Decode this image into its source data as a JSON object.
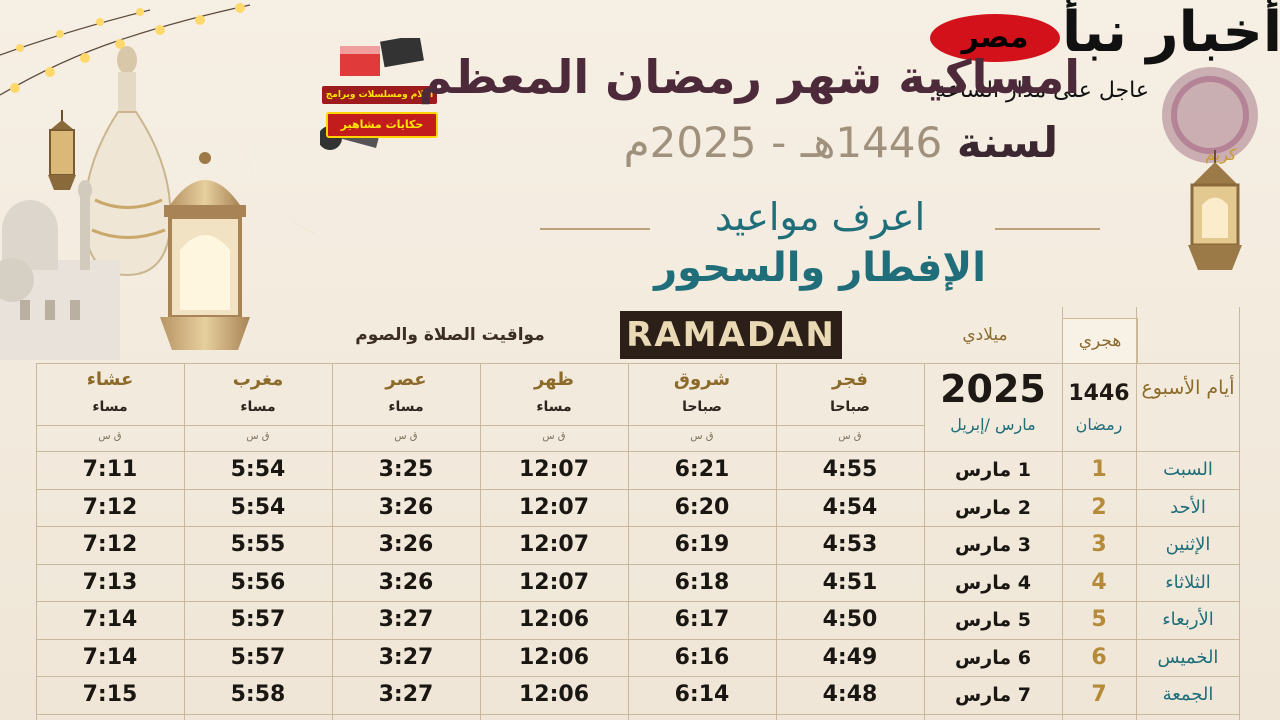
{
  "header": {
    "title_line1": "امساكية شهر رمضان المعظم",
    "title_year_prefix": "لسنة",
    "title_year_hijri": "1446هـ",
    "title_year_sep": "-",
    "title_year_greg": "2025م",
    "know_line": "اعرف مواعيد",
    "iftar_line": "الإفطار والسحور"
  },
  "badge": {
    "red_text": "مصر",
    "black_text": "أخبار نبأ",
    "sub_text": "عاجل على مدار الساعة"
  },
  "logo": {
    "caption_top": "أفلام ومسلسلات وبرامج",
    "caption_main": "حكايات مشاهير"
  },
  "table": {
    "ramadan_label": "RAMADAN",
    "prayer_times_heading": "مواقيت الصلاة والصوم",
    "miladi_heading": "ميلادي",
    "hijri_heading": "هجري",
    "days_heading": "أيام الأسبوع",
    "hijri_year": "1446",
    "hijri_month": "رمضان",
    "greg_year": "2025",
    "greg_months": "مارس /إبريل",
    "unit_label": "ق س",
    "columns": [
      {
        "name": "فجر",
        "period": "صباحا"
      },
      {
        "name": "شروق",
        "period": "صباحا"
      },
      {
        "name": "ظهر",
        "period": "مساء"
      },
      {
        "name": "عصر",
        "period": "مساء"
      },
      {
        "name": "مغرب",
        "period": "مساء"
      },
      {
        "name": "عشاء",
        "period": "مساء"
      }
    ],
    "rows": [
      {
        "day": "السبت",
        "hijri": "1",
        "date": "1 مارس",
        "fajr": "4:55",
        "shorouq": "6:21",
        "dhuhr": "12:07",
        "asr": "3:25",
        "maghrib": "5:54",
        "isha": "7:11"
      },
      {
        "day": "الأحد",
        "hijri": "2",
        "date": "2 مارس",
        "fajr": "4:54",
        "shorouq": "6:20",
        "dhuhr": "12:07",
        "asr": "3:26",
        "maghrib": "5:54",
        "isha": "7:12"
      },
      {
        "day": "الإثنين",
        "hijri": "3",
        "date": "3 مارس",
        "fajr": "4:53",
        "shorouq": "6:19",
        "dhuhr": "12:07",
        "asr": "3:26",
        "maghrib": "5:55",
        "isha": "7:12"
      },
      {
        "day": "الثلاثاء",
        "hijri": "4",
        "date": "4 مارس",
        "fajr": "4:51",
        "shorouq": "6:18",
        "dhuhr": "12:07",
        "asr": "3:26",
        "maghrib": "5:56",
        "isha": "7:13"
      },
      {
        "day": "الأربعاء",
        "hijri": "5",
        "date": "5 مارس",
        "fajr": "4:50",
        "shorouq": "6:17",
        "dhuhr": "12:06",
        "asr": "3:27",
        "maghrib": "5:57",
        "isha": "7:14"
      },
      {
        "day": "الخميس",
        "hijri": "6",
        "date": "6 مارس",
        "fajr": "4:49",
        "shorouq": "6:16",
        "dhuhr": "12:06",
        "asr": "3:27",
        "maghrib": "5:57",
        "isha": "7:14"
      },
      {
        "day": "الجمعة",
        "hijri": "7",
        "date": "7 مارس",
        "fajr": "4:48",
        "shorouq": "6:14",
        "dhuhr": "12:06",
        "asr": "3:27",
        "maghrib": "5:58",
        "isha": "7:15"
      }
    ]
  },
  "colors": {
    "teal": "#1f6e7a",
    "gold": "#b58a39",
    "plum": "#4d2a3a",
    "badge_red": "#d3111a"
  },
  "decor": {
    "icons": [
      "string-lights-icon",
      "crescent-moon-icon",
      "lantern-icon",
      "mosque-icon",
      "vase-icon",
      "ramadan-kareem-emblem"
    ],
    "kareem_text": "كريم"
  }
}
